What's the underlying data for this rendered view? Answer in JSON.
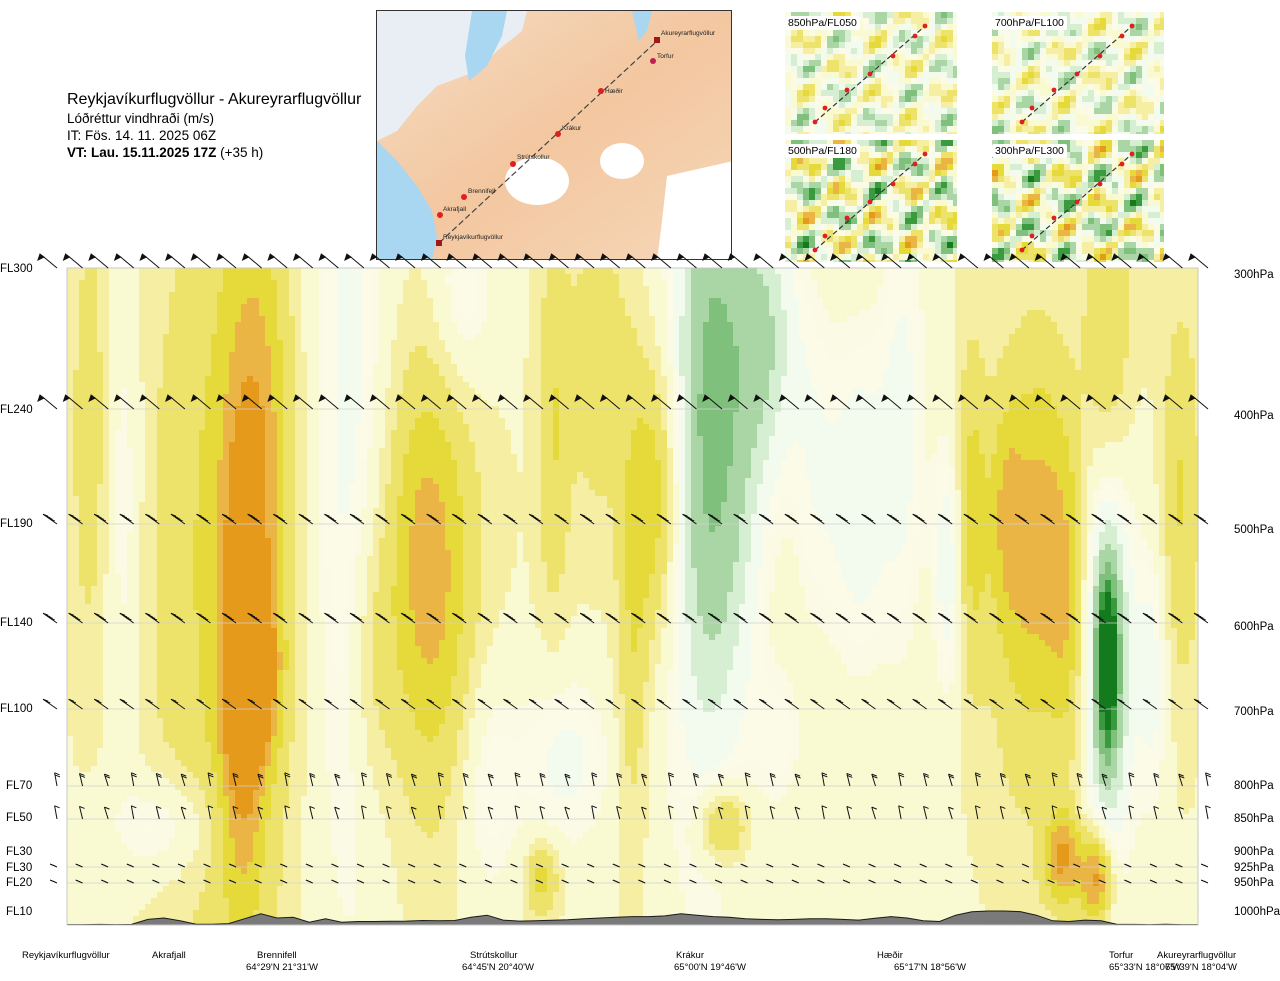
{
  "header": {
    "route": "Reykjavíkurflugvöllur - Akureyrarflugvöllur",
    "quantity": "Lóðréttur vindhraði (m/s)",
    "issue_time": "IT: Fös. 14. 11. 2025 06Z",
    "valid_time_bold": "VT: Lau. 15.11.2025 17Z",
    "valid_time_offset": "(+35 h)"
  },
  "map": {
    "places": [
      "Akureyrarflugvöllur",
      "Torfur",
      "Hæðir",
      "Krákur",
      "Strútskollur",
      "Brennifell",
      "Akrafjall",
      "Reykjavíkurflugvöllur"
    ]
  },
  "thumbnails": [
    {
      "label": "850hPa/FL050"
    },
    {
      "label": "700hPa/FL100"
    },
    {
      "label": "500hPa/FL180"
    },
    {
      "label": "300hPa/FL300"
    }
  ],
  "chart_data": {
    "type": "heatmap",
    "title": "Reykjavíkurflugvöllur - Akureyrarflugvöllur",
    "subtitle": "Lóðréttur vindhraði (m/s)",
    "levels": [
      {
        "fl": "FL300",
        "hpa": "300hPa"
      },
      {
        "fl": "FL240",
        "hpa": "400hPa"
      },
      {
        "fl": "FL190",
        "hpa": "500hPa"
      },
      {
        "fl": "FL140",
        "hpa": "600hPa"
      },
      {
        "fl": "FL100",
        "hpa": "700hPa"
      },
      {
        "fl": "FL70",
        "hpa": "800hPa"
      },
      {
        "fl": "FL50",
        "hpa": "850hPa"
      },
      {
        "fl": "FL30",
        "hpa": "900hPa"
      },
      {
        "fl": "FL30",
        "hpa": "925hPa"
      },
      {
        "fl": "FL20",
        "hpa": "950hPa"
      },
      {
        "fl": "FL10",
        "hpa": "1000hPa"
      }
    ],
    "locations": [
      {
        "name": "Reykjavíkurflugvöllur",
        "coord": ""
      },
      {
        "name": "Akrafjall",
        "coord": ""
      },
      {
        "name": "Brennifell",
        "coord": "64°29'N 21°31'W"
      },
      {
        "name": "Strútskollur",
        "coord": "64°45'N 20°40'W"
      },
      {
        "name": "Krákur",
        "coord": "65°00'N 19°46'W"
      },
      {
        "name": "Hæðir",
        "coord": "65°17'N 18°56'W"
      },
      {
        "name": "Torfur",
        "coord": "65°33'N 18°07'W"
      },
      {
        "name": "Akureyrarflugvöllur",
        "coord": "65°39'N 18°04'W"
      }
    ],
    "terrain_profile_fl": [
      0.3,
      0.3,
      0.4,
      0.3,
      0.4,
      4,
      5,
      3,
      0.6,
      0.5,
      1,
      4.5,
      8,
      5,
      5.5,
      2,
      4.5,
      2,
      2.5,
      2.5,
      2.7,
      2.8,
      3.2,
      3,
      3.2,
      5.5,
      7,
      3.5,
      2.8,
      3,
      3.4,
      3.8,
      4.5,
      5,
      5.5,
      6,
      6,
      6.5,
      8,
      7,
      6,
      5.5,
      4.5,
      4,
      3.7,
      4,
      4.5,
      4.5,
      4,
      3.5,
      4.8,
      6,
      5,
      3,
      2.5,
      7,
      9.5,
      10,
      10,
      9.6,
      7,
      3,
      2.5,
      3.5,
      3,
      0.4,
      0.4,
      0.3,
      0.6,
      0.3,
      0.3
    ],
    "vertical_velocity_legend_ms": {
      "negative_descending": [
        "#fafad2",
        "#f6efa3",
        "#ede36a",
        "#e6d93a",
        "#eab544",
        "#e59a1c"
      ],
      "positive_ascending": [
        "#f3fbef",
        "#d6efd2",
        "#a9d6a4",
        "#7fc17c",
        "#3a9b3e",
        "#137a1e"
      ]
    },
    "wind_barb_rows_fl": [
      300,
      240,
      190,
      140,
      100,
      70,
      50,
      30,
      20
    ],
    "wind_barb_columns": 46
  }
}
